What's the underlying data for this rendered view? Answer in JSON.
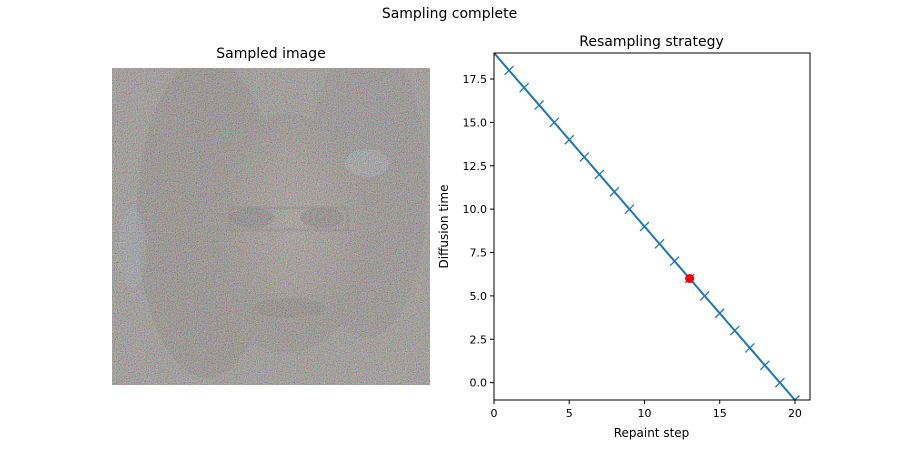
{
  "figure": {
    "suptitle": "Sampling complete"
  },
  "image_panel": {
    "title": "Sampled image"
  },
  "chart_data": {
    "type": "line",
    "title": "Resampling strategy",
    "xlabel": "Repaint step",
    "ylabel": "Diffusion time",
    "xlim": [
      0,
      21
    ],
    "ylim": [
      -1,
      19
    ],
    "xticks": [
      0,
      5,
      10,
      15,
      20
    ],
    "yticks": [
      0.0,
      2.5,
      5.0,
      7.5,
      10.0,
      12.5,
      15.0,
      17.5
    ],
    "xtick_labels": [
      "0",
      "5",
      "10",
      "15",
      "20"
    ],
    "ytick_labels": [
      "0.0",
      "2.5",
      "5.0",
      "7.5",
      "10.0",
      "12.5",
      "15.0",
      "17.5"
    ],
    "grid": false,
    "series": [
      {
        "color": "#1f77b4",
        "marker": "x",
        "x": [
          0,
          1,
          2,
          3,
          4,
          5,
          6,
          7,
          8,
          9,
          10,
          11,
          12,
          13,
          14,
          15,
          16,
          17,
          18,
          19,
          20
        ],
        "y": [
          19,
          18,
          17,
          16,
          15,
          14,
          13,
          12,
          11,
          10,
          9,
          8,
          7,
          6,
          5,
          4,
          3,
          2,
          1,
          0,
          -1
        ]
      }
    ],
    "highlight": {
      "x": 13,
      "y": 6,
      "color": "#ff0000",
      "marker": "o"
    }
  }
}
